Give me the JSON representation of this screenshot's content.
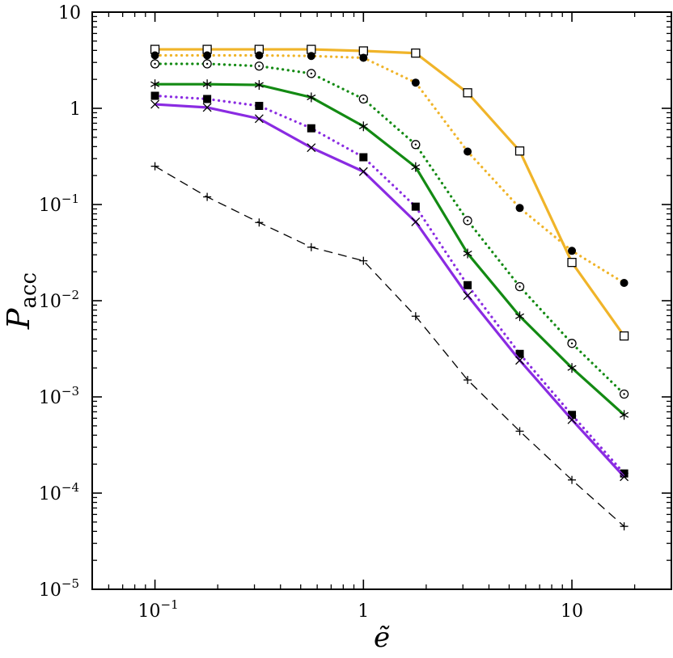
{
  "chart_data": {
    "type": "line",
    "xscale": "log",
    "yscale": "log",
    "xlim": [
      0.05,
      30
    ],
    "ylim": [
      1e-05,
      10
    ],
    "x_ticks": [
      {
        "value": 0.1,
        "base": "10",
        "exp": "−1"
      },
      {
        "value": 1,
        "base": "1",
        "exp": ""
      },
      {
        "value": 10,
        "base": "10",
        "exp": ""
      }
    ],
    "y_ticks": [
      {
        "value": 10,
        "base": "10",
        "exp": ""
      },
      {
        "value": 1,
        "base": "1",
        "exp": ""
      },
      {
        "value": 0.1,
        "base": "10",
        "exp": "−1"
      },
      {
        "value": 0.01,
        "base": "10",
        "exp": "−2"
      },
      {
        "value": 0.001,
        "base": "10",
        "exp": "−3"
      },
      {
        "value": 0.0001,
        "base": "10",
        "exp": "−4"
      },
      {
        "value": 1e-05,
        "base": "10",
        "exp": "−5"
      }
    ],
    "xlabel": "ẽ",
    "ylabel": {
      "main": "P",
      "sub": "acc"
    },
    "x": [
      0.1,
      0.178,
      0.316,
      0.562,
      1.0,
      1.78,
      3.16,
      5.62,
      10.0,
      17.8
    ],
    "series": [
      {
        "color": "#F0B429",
        "line": "solid",
        "marker": "open-square",
        "values": [
          4.1,
          4.1,
          4.1,
          4.1,
          3.95,
          3.75,
          1.45,
          0.36,
          0.025,
          0.0043
        ]
      },
      {
        "color": "#F0B429",
        "line": "dotted",
        "marker": "filled-circle",
        "values": [
          3.55,
          3.55,
          3.55,
          3.5,
          3.35,
          1.85,
          0.355,
          0.092,
          0.033,
          0.0153
        ]
      },
      {
        "color": "#138A13",
        "line": "dotted",
        "marker": "circle-dot",
        "values": [
          2.9,
          2.9,
          2.75,
          2.3,
          1.25,
          0.42,
          0.068,
          0.014,
          0.0036,
          0.00107
        ]
      },
      {
        "color": "#138A13",
        "line": "solid",
        "marker": "asterisk",
        "values": [
          1.78,
          1.78,
          1.75,
          1.3,
          0.65,
          0.245,
          0.031,
          0.0069,
          0.002,
          0.00065
        ]
      },
      {
        "color": "#8A2BE2",
        "line": "dotted",
        "marker": "filled-square",
        "values": [
          1.35,
          1.25,
          1.06,
          0.62,
          0.31,
          0.095,
          0.0145,
          0.0028,
          0.00065,
          0.00016
        ]
      },
      {
        "color": "#8A2BE2",
        "line": "solid",
        "marker": "x",
        "values": [
          1.1,
          1.02,
          0.78,
          0.39,
          0.22,
          0.066,
          0.0113,
          0.0024,
          0.00058,
          0.000148
        ]
      },
      {
        "color": "#000000",
        "line": "dashed",
        "marker": "plus",
        "values": [
          0.25,
          0.12,
          0.065,
          0.036,
          0.026,
          0.0069,
          0.0015,
          0.00044,
          0.000137,
          4.51e-05
        ]
      }
    ]
  }
}
